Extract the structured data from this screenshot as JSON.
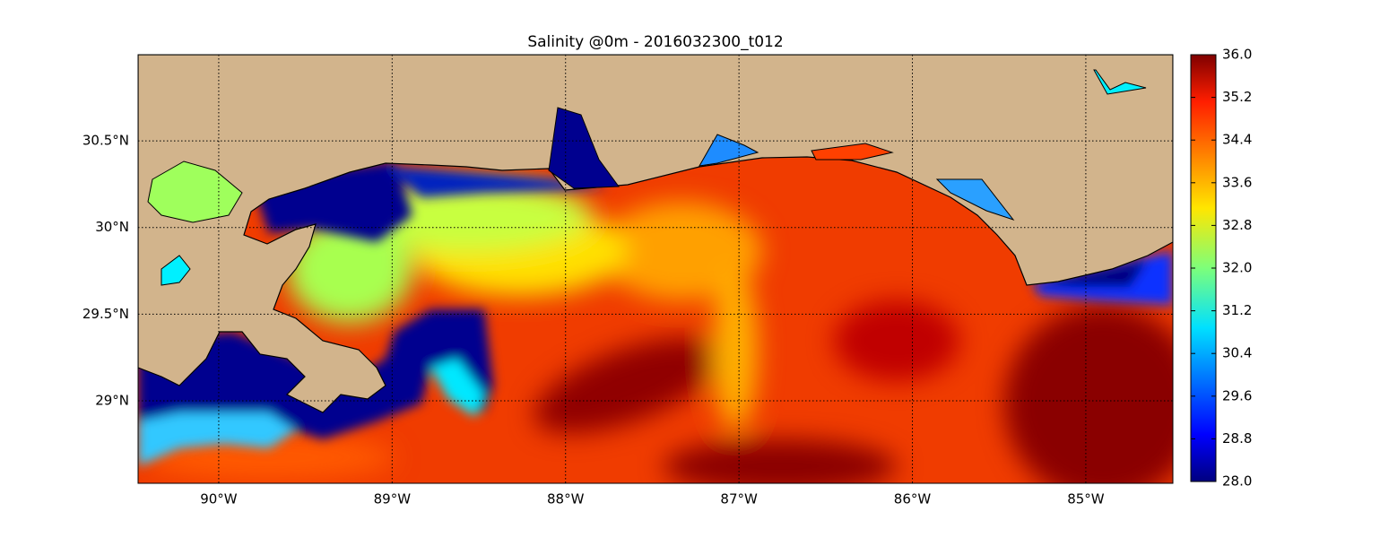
{
  "chart_data": {
    "type": "map",
    "title": "Salinity @0m - 2016032300_t012",
    "xlim": [
      -90.465,
      -84.498
    ],
    "ylim": [
      28.524,
      30.997
    ],
    "xticks": [
      {
        "value": -90,
        "label": "90°W"
      },
      {
        "value": -89,
        "label": "89°W"
      },
      {
        "value": -88,
        "label": "88°W"
      },
      {
        "value": -87,
        "label": "87°W"
      },
      {
        "value": -86,
        "label": "86°W"
      },
      {
        "value": -85,
        "label": "85°W"
      }
    ],
    "yticks": [
      {
        "value": 29,
        "label": "29°N"
      },
      {
        "value": 29.5,
        "label": "29.5°N"
      },
      {
        "value": 30,
        "label": "30°N"
      },
      {
        "value": 30.5,
        "label": "30.5°N"
      }
    ],
    "grid": true,
    "colorbar": {
      "lim": [
        28,
        36
      ],
      "ticks": [
        {
          "value": 28,
          "label": "28.0"
        },
        28.8,
        29.6,
        30.4,
        31.2,
        {
          "value": 32,
          "label": "32.0"
        },
        32.8,
        33.6,
        34.4,
        35.2,
        {
          "value": 36,
          "label": "36.0"
        }
      ]
    }
  }
}
